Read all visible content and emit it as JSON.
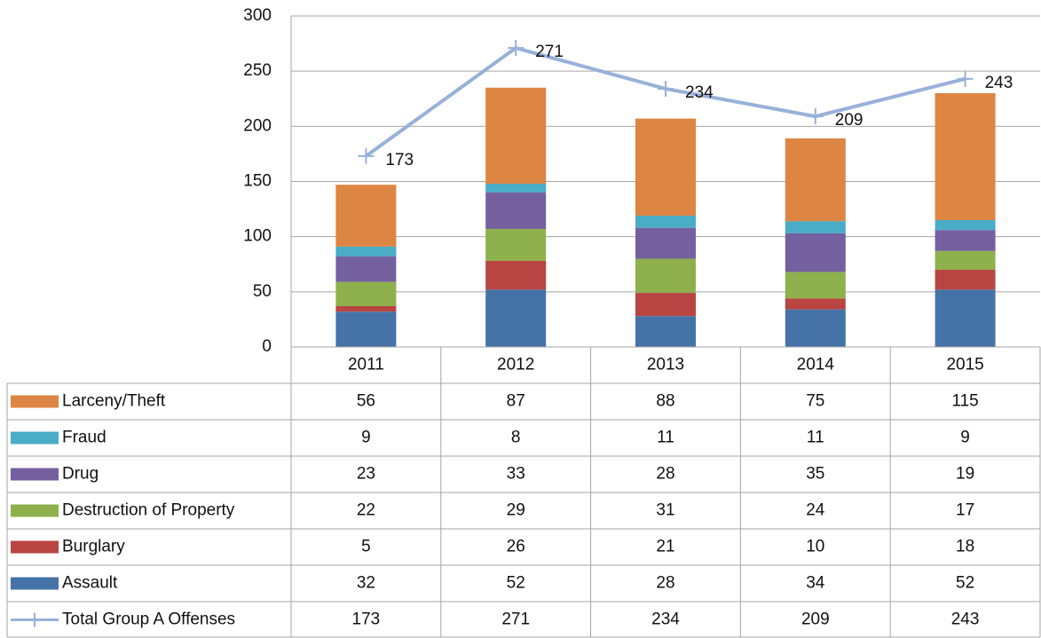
{
  "chart_data": {
    "type": "bar",
    "categories": [
      "2011",
      "2012",
      "2013",
      "2014",
      "2015"
    ],
    "series": [
      {
        "name": "Larceny/Theft",
        "color": "#dd8542",
        "values": [
          56,
          87,
          88,
          75,
          115
        ]
      },
      {
        "name": "Fraud",
        "color": "#4aacc6",
        "values": [
          9,
          8,
          11,
          11,
          9
        ]
      },
      {
        "name": "Drug",
        "color": "#75609f",
        "values": [
          23,
          33,
          28,
          35,
          19
        ]
      },
      {
        "name": "Destruction of Property",
        "color": "#8eb04d",
        "values": [
          22,
          29,
          31,
          24,
          17
        ]
      },
      {
        "name": "Burglary",
        "color": "#b84542",
        "values": [
          5,
          26,
          21,
          10,
          18
        ]
      },
      {
        "name": "Assault",
        "color": "#4573a8",
        "values": [
          32,
          52,
          28,
          34,
          52
        ]
      },
      {
        "name": "Total Group A Offenses",
        "color": "#98b1d9",
        "type": "line",
        "values": [
          173,
          271,
          234,
          209,
          243
        ]
      }
    ],
    "ylim": [
      0,
      300
    ],
    "yticks": [
      0,
      50,
      100,
      150,
      200,
      250,
      300
    ],
    "grid": true,
    "stacked": true
  }
}
